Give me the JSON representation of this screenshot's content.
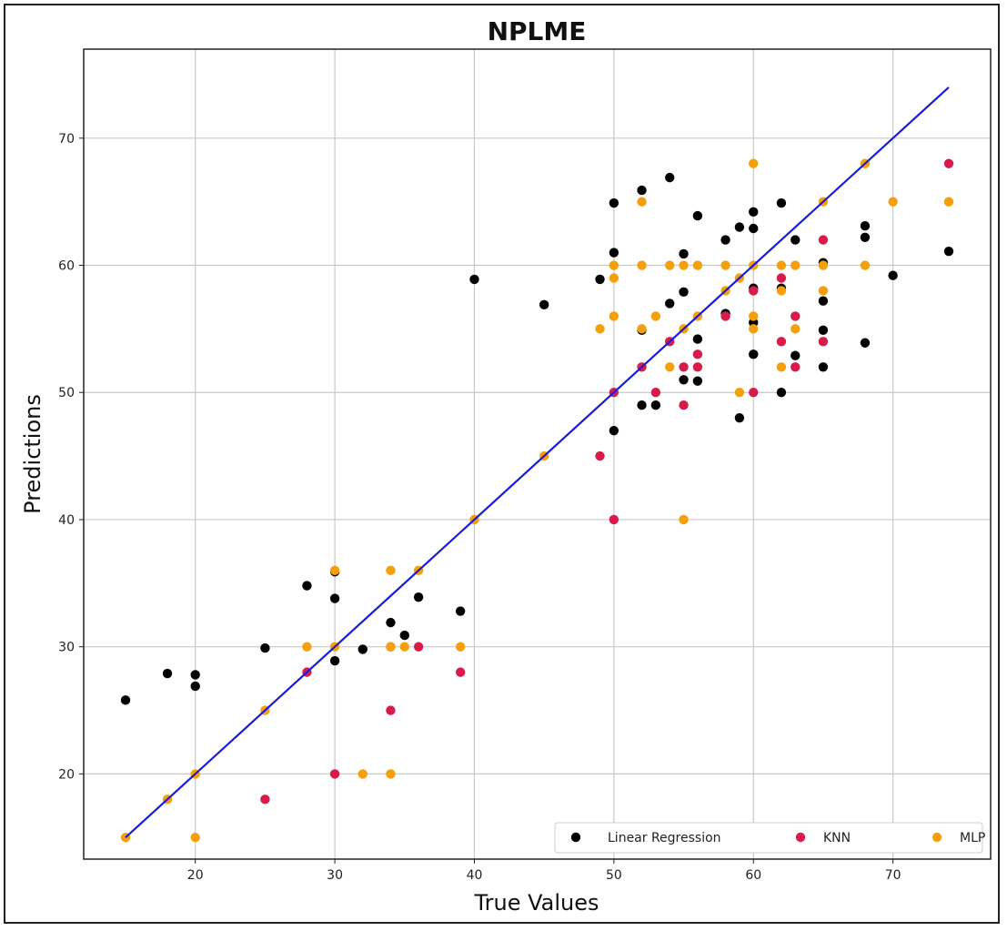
{
  "chart_data": {
    "type": "scatter",
    "title": "NPLME",
    "xlabel": "True Values",
    "ylabel": "Predictions",
    "xlim": [
      12,
      77
    ],
    "ylim": [
      13.3,
      77
    ],
    "xticks": [
      20,
      30,
      40,
      50,
      60,
      70
    ],
    "yticks": [
      20,
      30,
      40,
      50,
      60,
      70
    ],
    "grid": true,
    "legend_position": "bottom-right",
    "reference_line": {
      "x": [
        15,
        74
      ],
      "y": [
        15,
        74
      ],
      "color": "#1a1adc"
    },
    "series": [
      {
        "name": "Linear Regression",
        "color": "#000000",
        "points": [
          [
            15,
            25.8
          ],
          [
            18,
            27.9
          ],
          [
            20,
            27.8
          ],
          [
            20,
            26.9
          ],
          [
            25,
            29.9
          ],
          [
            28,
            34.8
          ],
          [
            30,
            35.9
          ],
          [
            30,
            33.8
          ],
          [
            30,
            28.9
          ],
          [
            32,
            29.8
          ],
          [
            34,
            31.9
          ],
          [
            35,
            30.9
          ],
          [
            36,
            33.9
          ],
          [
            39,
            32.8
          ],
          [
            40,
            58.9
          ],
          [
            45,
            56.9
          ],
          [
            49,
            58.9
          ],
          [
            50,
            64.9
          ],
          [
            50,
            61
          ],
          [
            50,
            47
          ],
          [
            52,
            65.9
          ],
          [
            52,
            54.9
          ],
          [
            52,
            49
          ],
          [
            53,
            49
          ],
          [
            54,
            66.9
          ],
          [
            54,
            57
          ],
          [
            55,
            60.9
          ],
          [
            55,
            57.9
          ],
          [
            55,
            51
          ],
          [
            56,
            63.9
          ],
          [
            56,
            54.2
          ],
          [
            56,
            50.9
          ],
          [
            58,
            62
          ],
          [
            58,
            56.2
          ],
          [
            59,
            63
          ],
          [
            59,
            48
          ],
          [
            60,
            64.2
          ],
          [
            60,
            62.9
          ],
          [
            60,
            58.2
          ],
          [
            60,
            55.5
          ],
          [
            60,
            53
          ],
          [
            62,
            64.9
          ],
          [
            62,
            58.2
          ],
          [
            62,
            50
          ],
          [
            63,
            62
          ],
          [
            63,
            52.9
          ],
          [
            65,
            60.2
          ],
          [
            65,
            57.2
          ],
          [
            65,
            54.9
          ],
          [
            65,
            52
          ],
          [
            68,
            63.1
          ],
          [
            68,
            62.2
          ],
          [
            68,
            53.9
          ],
          [
            70,
            59.2
          ],
          [
            74,
            61.1
          ]
        ]
      },
      {
        "name": "KNN",
        "color": "#d81b4a",
        "points": [
          [
            25,
            18
          ],
          [
            28,
            28
          ],
          [
            30,
            20
          ],
          [
            34,
            30
          ],
          [
            34,
            25
          ],
          [
            36,
            30
          ],
          [
            39,
            28
          ],
          [
            49,
            45
          ],
          [
            50,
            50
          ],
          [
            50,
            40
          ],
          [
            52,
            52
          ],
          [
            53,
            50
          ],
          [
            54,
            54
          ],
          [
            55,
            52
          ],
          [
            55,
            49
          ],
          [
            56,
            53
          ],
          [
            56,
            52
          ],
          [
            58,
            56
          ],
          [
            60,
            58
          ],
          [
            60,
            50
          ],
          [
            62,
            59
          ],
          [
            62,
            54
          ],
          [
            63,
            56
          ],
          [
            63,
            52
          ],
          [
            65,
            62
          ],
          [
            65,
            54
          ],
          [
            74,
            68
          ]
        ]
      },
      {
        "name": "MLP",
        "color": "#f5a00b",
        "points": [
          [
            15,
            15
          ],
          [
            18,
            18
          ],
          [
            20,
            15
          ],
          [
            20,
            20
          ],
          [
            25,
            25
          ],
          [
            28,
            30
          ],
          [
            30,
            36
          ],
          [
            30,
            30
          ],
          [
            32,
            20
          ],
          [
            34,
            36
          ],
          [
            34,
            30
          ],
          [
            34,
            20
          ],
          [
            35,
            30
          ],
          [
            36,
            36
          ],
          [
            39,
            30
          ],
          [
            40,
            40
          ],
          [
            45,
            45
          ],
          [
            49,
            55
          ],
          [
            50,
            60
          ],
          [
            50,
            59
          ],
          [
            50,
            56
          ],
          [
            52,
            65
          ],
          [
            52,
            60
          ],
          [
            52,
            55
          ],
          [
            53,
            56
          ],
          [
            54,
            60
          ],
          [
            54,
            52
          ],
          [
            55,
            60
          ],
          [
            55,
            55
          ],
          [
            55,
            40
          ],
          [
            56,
            60
          ],
          [
            56,
            56
          ],
          [
            58,
            60
          ],
          [
            58,
            58
          ],
          [
            59,
            59
          ],
          [
            59,
            50
          ],
          [
            60,
            68
          ],
          [
            60,
            60
          ],
          [
            60,
            56
          ],
          [
            60,
            55
          ],
          [
            62,
            60
          ],
          [
            62,
            58
          ],
          [
            62,
            52
          ],
          [
            63,
            60
          ],
          [
            63,
            55
          ],
          [
            65,
            65
          ],
          [
            65,
            60
          ],
          [
            65,
            58
          ],
          [
            68,
            68
          ],
          [
            68,
            60
          ],
          [
            70,
            65
          ],
          [
            74,
            65
          ]
        ]
      }
    ]
  }
}
